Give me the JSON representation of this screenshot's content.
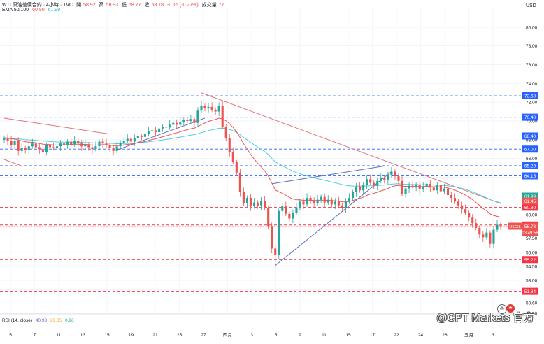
{
  "header": {
    "symbol": "WTI 原油差價合約 · 4小時 · TVC",
    "open_label": "開",
    "open_value": "58.92",
    "high_label": "高",
    "high_value": "58.93",
    "low_label": "低",
    "low_value": "58.77",
    "close_label": "收",
    "close_value": "58.78",
    "change": "-0.16 (-0.27%)",
    "volume_label": "成交量",
    "volume_value": "77",
    "ema_label": "EMA 50/100",
    "ema_fast_value": "60.80",
    "ema_slow_value": "61.99"
  },
  "rsi": {
    "label": "RSI (14, close)",
    "value1": "40.93",
    "value2": "29.85",
    "value3": "0.96"
  },
  "watermark": "@CPT Markets 官方",
  "colors": {
    "bull": "#26a69a",
    "bear": "#ef5350",
    "ema_fast": "#ef5350",
    "ema_slow": "#4dd0e1",
    "trendline_red": "#e57373",
    "trendline_blue": "#5c6bc0",
    "level_blue": "#2962ff",
    "level_red": "#f23645"
  },
  "chart_data": {
    "type": "candlestick",
    "currency": "USD",
    "ylim": [
      49.5,
      82.0
    ],
    "y_ticks": [
      "80.00",
      "78.00",
      "76.00",
      "74.00",
      "72.00",
      "70.00",
      "68.00",
      "66.00",
      "64.00",
      "62.00",
      "60.00",
      "57.50",
      "56.00",
      "54.50",
      "53.00",
      "52.00",
      "50.60",
      "49.50"
    ],
    "x_ticks": [
      "5",
      "7",
      "11",
      "13",
      "15",
      "19",
      "21",
      "25",
      "27",
      "四月",
      "3",
      "5",
      "9",
      "11",
      "15",
      "17",
      "22",
      "24",
      "26",
      "五月",
      "3"
    ],
    "horizontal_levels": [
      {
        "value": 72.68,
        "label": "72.68",
        "color": "blue"
      },
      {
        "value": 70.4,
        "label": "70.40",
        "color": "blue"
      },
      {
        "value": 68.4,
        "label": "68.40",
        "color": "blue"
      },
      {
        "value": 67.0,
        "label": "67.00",
        "color": "blue"
      },
      {
        "value": 65.23,
        "label": "65.23",
        "color": "blue"
      },
      {
        "value": 64.15,
        "label": "64.15",
        "color": "blue"
      },
      {
        "value": 60.8,
        "label": "60.80",
        "color": "red"
      },
      {
        "value": 58.91,
        "label": "58.91",
        "color": "red"
      },
      {
        "value": 55.22,
        "label": "55.22",
        "color": "red"
      },
      {
        "value": 51.84,
        "label": "51.84",
        "color": "red"
      }
    ],
    "price_badges": [
      {
        "value": 61.99,
        "label": "61.99",
        "color": "#26a69a"
      },
      {
        "value": 61.45,
        "label": "61.45",
        "color": "#ef5350"
      },
      {
        "value": 60.8,
        "label": "60.80",
        "color": "#ef5350"
      },
      {
        "value": 58.91,
        "label": "58.91",
        "color": "#ef5350"
      },
      {
        "value": 58.78,
        "label": "58.78",
        "color": "#ef5350"
      }
    ],
    "current_price_tag": {
      "symbol": "USOIL",
      "value": 58.78,
      "countdown": "03:49:58"
    },
    "closes": [
      68.2,
      67.9,
      67.4,
      67.9,
      66.8,
      67.1,
      66.9,
      67.3,
      67.6,
      67.2,
      67.0,
      66.7,
      67.4,
      67.2,
      67.1,
      67.3,
      67.6,
      67.4,
      67.8,
      67.5,
      67.9,
      67.6,
      67.3,
      67.5,
      67.2,
      67.0,
      67.3,
      67.8,
      67.6,
      67.4,
      67.1,
      66.8,
      67.3,
      67.7,
      67.9,
      68.1,
      67.8,
      68.2,
      68.4,
      68.3,
      68.6,
      68.9,
      69.0,
      68.8,
      69.2,
      69.4,
      69.3,
      69.6,
      69.8,
      69.6,
      69.9,
      70.1,
      70.0,
      70.2,
      69.8,
      71.1,
      71.6,
      71.4,
      71.5,
      71.2,
      71.0,
      71.6,
      69.4,
      68.2,
      66.7,
      65.6,
      64.5,
      62.4,
      61.2,
      61.8,
      60.9,
      61.3,
      61.0,
      61.5,
      60.7,
      58.8,
      56.4,
      55.7,
      60.4,
      60.9,
      60.1,
      59.6,
      60.2,
      60.8,
      61.4,
      61.1,
      61.8,
      61.5,
      61.2,
      61.6,
      61.9,
      61.3,
      61.6,
      61.1,
      61.4,
      61.0,
      60.7,
      61.4,
      61.8,
      62.4,
      63.0,
      62.6,
      63.2,
      63.8,
      63.4,
      63.1,
      63.6,
      63.9,
      63.7,
      64.2,
      64.6,
      64.1,
      63.6,
      62.2,
      62.8,
      63.1,
      62.9,
      63.2,
      62.7,
      63.0,
      63.3,
      62.9,
      62.6,
      63.2,
      62.5,
      62.8,
      62.1,
      61.8,
      61.4,
      61.0,
      60.6,
      60.2,
      59.7,
      59.1,
      58.6,
      57.9,
      57.6,
      58.1,
      56.9,
      58.4,
      58.93,
      58.78
    ]
  }
}
